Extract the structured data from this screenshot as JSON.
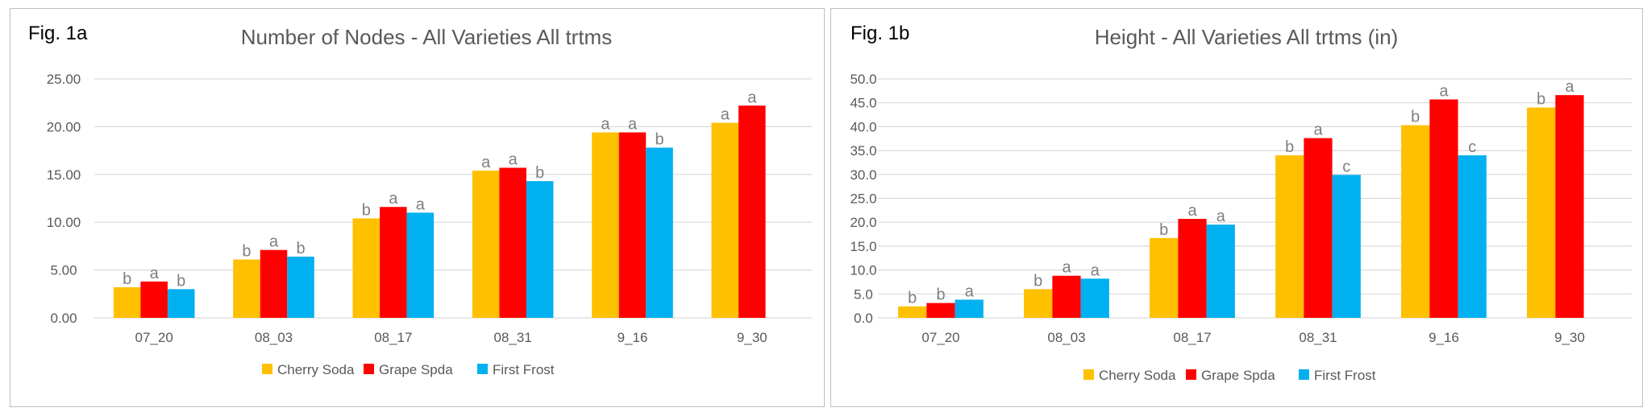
{
  "colors": {
    "Cherry Soda": "#ffc000",
    "Grape Spda": "#ff0000",
    "First Frost": "#00b0f0",
    "gridline": "#d9d9d9",
    "axis_text": "#595959",
    "sig_letter": "#7f7f7f"
  },
  "chart_data": [
    {
      "type": "bar",
      "figure_label": "Fig. 1a",
      "title": "Number of Nodes - All Varieties All trtms",
      "xlabel": "",
      "ylabel": "",
      "ylim": [
        0,
        25
      ],
      "ytick_step": 5,
      "ytick_labels": [
        "0.00",
        "5.00",
        "10.00",
        "15.00",
        "20.00",
        "25.00"
      ],
      "categories": [
        "07_20",
        "08_03",
        "08_17",
        "08_31",
        "9_16",
        "9_30"
      ],
      "grid": true,
      "legend": "bottom",
      "series": [
        {
          "name": "Cherry Soda",
          "values": [
            3.2,
            6.1,
            10.4,
            15.4,
            19.4,
            20.4
          ],
          "labels": [
            "b",
            "b",
            "b",
            "a",
            "a",
            "a"
          ]
        },
        {
          "name": "Grape Spda",
          "values": [
            3.8,
            7.1,
            11.6,
            15.7,
            19.4,
            22.2
          ],
          "labels": [
            "a",
            "a",
            "a",
            "a",
            "a",
            "a"
          ]
        },
        {
          "name": "First Frost",
          "values": [
            3.0,
            6.4,
            11.0,
            14.3,
            17.8,
            null
          ],
          "labels": [
            "b",
            "b",
            "a",
            "b",
            "b",
            ""
          ]
        }
      ]
    },
    {
      "type": "bar",
      "figure_label": "Fig. 1b",
      "title": "Height - All Varieties All trtms (in)",
      "xlabel": "",
      "ylabel": "",
      "ylim": [
        0,
        50
      ],
      "ytick_step": 5,
      "ytick_labels": [
        "0.0",
        "5.0",
        "10.0",
        "15.0",
        "20.0",
        "25.0",
        "30.0",
        "35.0",
        "40.0",
        "45.0",
        "50.0"
      ],
      "categories": [
        "07_20",
        "08_03",
        "08_17",
        "08_31",
        "9_16",
        "9_30"
      ],
      "grid": true,
      "legend": "bottom",
      "series": [
        {
          "name": "Cherry Soda",
          "values": [
            2.4,
            6.0,
            16.7,
            34.0,
            40.3,
            44.0
          ],
          "labels": [
            "b",
            "b",
            "b",
            "b",
            "b",
            "b"
          ]
        },
        {
          "name": "Grape Spda",
          "values": [
            3.1,
            8.8,
            20.7,
            37.6,
            45.7,
            46.6
          ],
          "labels": [
            "b",
            "a",
            "a",
            "a",
            "a",
            "a"
          ]
        },
        {
          "name": "First Frost",
          "values": [
            3.8,
            8.2,
            19.5,
            29.9,
            34.0,
            null
          ],
          "labels": [
            "a",
            "a",
            "a",
            "c",
            "c",
            ""
          ]
        }
      ]
    }
  ]
}
